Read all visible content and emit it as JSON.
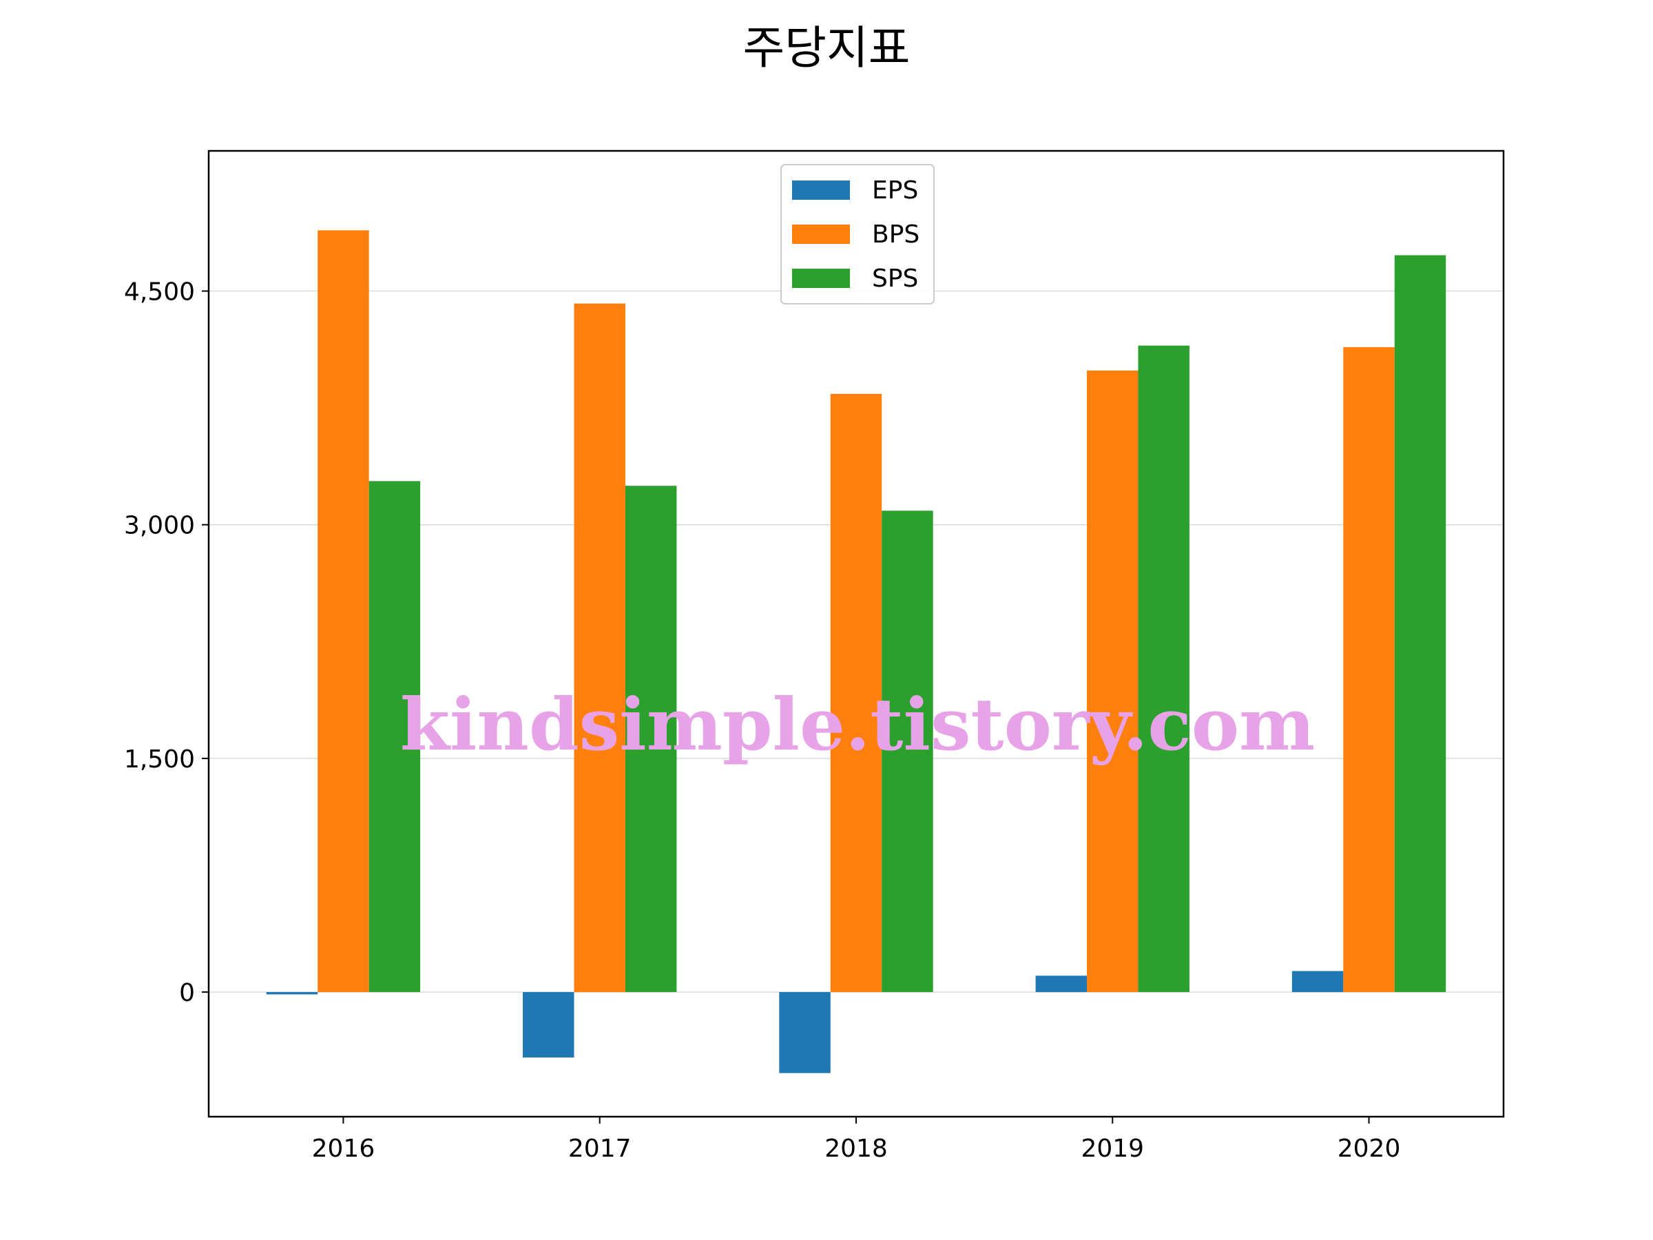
{
  "chart_data": {
    "type": "bar",
    "title": "주당지표",
    "categories": [
      "2016",
      "2017",
      "2018",
      "2019",
      "2020"
    ],
    "series": [
      {
        "name": "EPS",
        "color": "#1f77b4",
        "values": [
          -15,
          -420,
          -520,
          105,
          135
        ]
      },
      {
        "name": "BPS",
        "color": "#ff7f0e",
        "values": [
          4890,
          4420,
          3840,
          3990,
          4140
        ]
      },
      {
        "name": "SPS",
        "color": "#2ca02c",
        "values": [
          3280,
          3250,
          3090,
          4150,
          4730
        ]
      }
    ],
    "y_ticks": [
      0,
      1500,
      3000,
      4500
    ],
    "y_tick_labels": [
      "0",
      "1,500",
      "3,000",
      "4,500"
    ],
    "ylim": [
      -800,
      5400
    ],
    "grid": "y",
    "legend_position": "upper center",
    "watermark": "kindsimple.tistory.com"
  }
}
